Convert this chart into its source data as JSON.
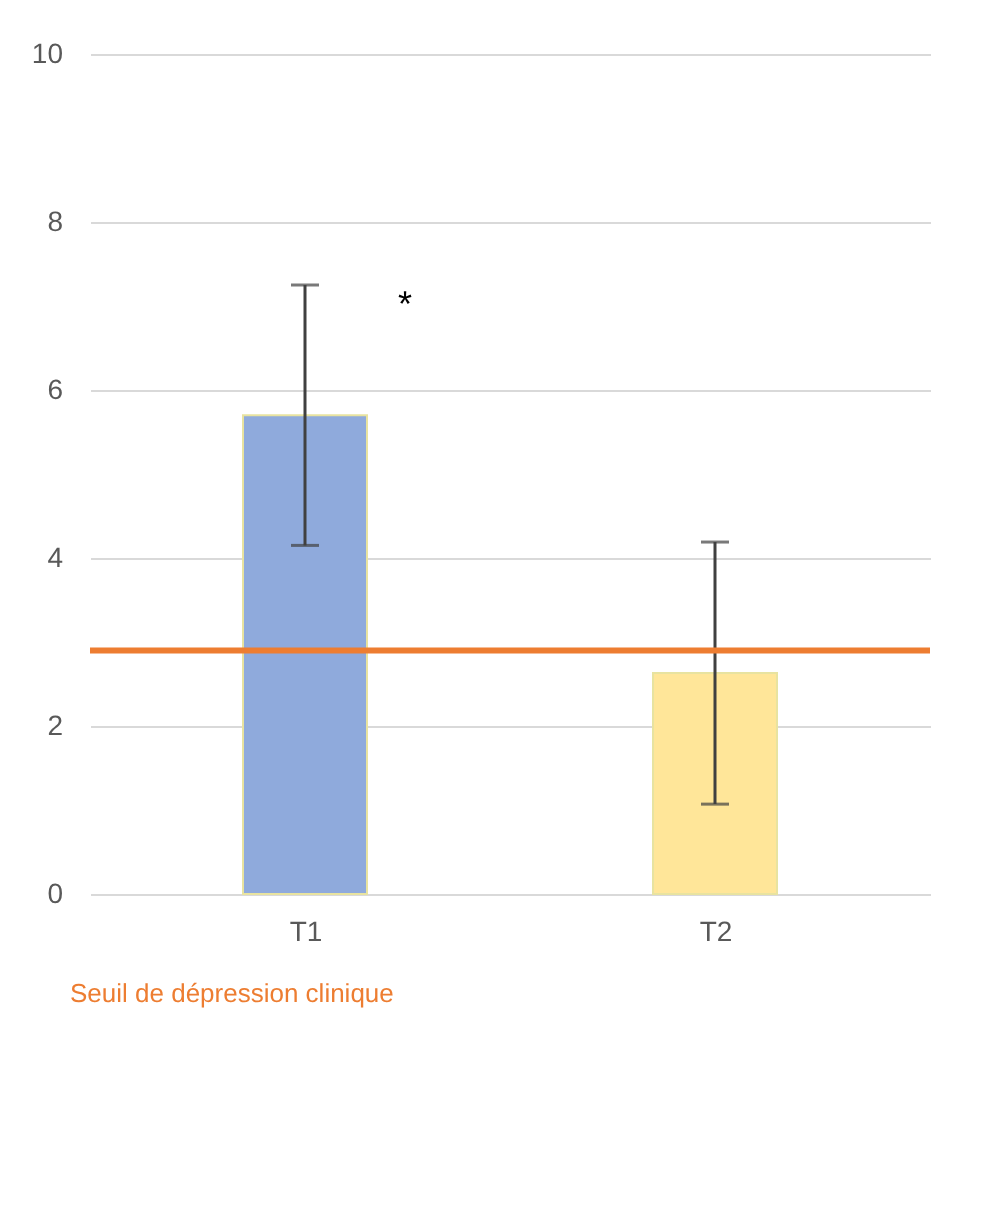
{
  "chart_data": {
    "type": "bar",
    "categories": [
      "T1",
      "T2"
    ],
    "values": [
      5.7,
      2.63
    ],
    "colors": [
      "#8faadc",
      "#ffe699"
    ],
    "errors": [
      1.55,
      1.56
    ],
    "ylim": [
      0,
      10
    ],
    "yticks": [
      0,
      2,
      4,
      6,
      8,
      10
    ],
    "grid": "y",
    "ref_lines": [
      {
        "axis": "y",
        "value": 2.9,
        "label": "Seuil de dépression clinique",
        "color": "#ed7d31"
      }
    ],
    "annotations": [
      {
        "text": "*",
        "x": "T1",
        "y": 7
      }
    ]
  }
}
